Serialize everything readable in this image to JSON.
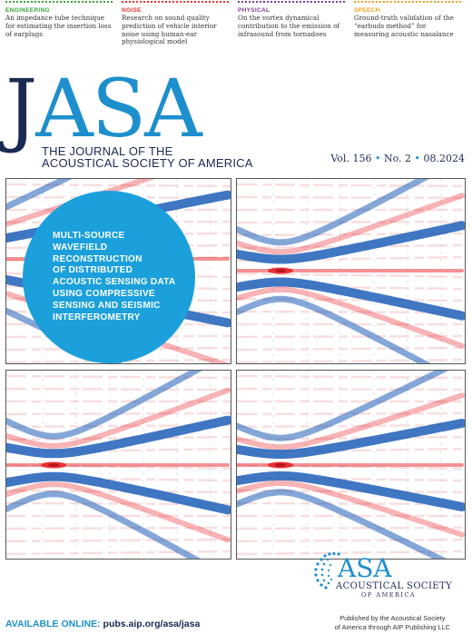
{
  "topics": [
    {
      "category": "ENGINEERING",
      "color": "#3aa335",
      "text": "An impedance tube technique for estimating the insertion loss of earplugs"
    },
    {
      "category": "NOISE",
      "color": "#e2322d",
      "text": "Research on sound quality prediction of vehicle interior noise using human-ear physiological model"
    },
    {
      "category": "PHYSICAL",
      "color": "#7b3f98",
      "text": "On the vortex dynamical contribution to the emission of infrasound from tornadoes"
    },
    {
      "category": "SPEECH",
      "color": "#f0a21b",
      "text": "Ground-truth validation of the “earbuds method” for measuring acoustic nasalance"
    }
  ],
  "masthead": {
    "logo_j": "J",
    "logo_rest": "ASA",
    "title_line1": "THE JOURNAL OF THE",
    "title_line2": "ACOUSTICAL SOCIETY OF AMERICA",
    "volume": "Vol. 156",
    "issue": "No. 2",
    "date": "08.2024",
    "separator": "•"
  },
  "feature": {
    "lines": [
      "MULTI-SOURCE",
      "WAVEFIELD",
      "RECONSTRUCTION",
      "OF DISTRIBUTED",
      "ACOUSTIC SENSING DATA",
      "USING COMPRESSIVE",
      "SENSING AND SEISMIC",
      "INTERFEROMETRY"
    ],
    "circle_color": "#1ba0dc"
  },
  "footer": {
    "available_label": "AVAILABLE ONLINE:",
    "url": "pubs.aip.org/asa/jasa",
    "publisher_line1": "Published by the Acoustical Society",
    "publisher_line2": "of America through AIP Publishing LLC",
    "asa_logo_word": "ASA",
    "asa_logo_line1": "ACOUSTICAL SOCIETY",
    "asa_logo_line2": "OF AMERICA"
  },
  "colors": {
    "brand_blue": "#1d8fcc",
    "navy": "#1b2a52",
    "wave_blue": "#1f5fb8",
    "wave_red": "#e8262b"
  }
}
